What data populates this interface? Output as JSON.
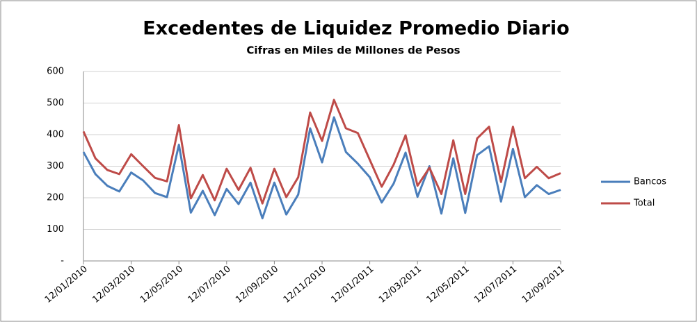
{
  "chart_data": {
    "type": "line",
    "title": "Excedentes de Liquidez Promedio Diario",
    "subtitle": "Cifras en Miles de Millones de Pesos",
    "categories": [
      "12/01/2010",
      null,
      null,
      null,
      "12/03/2010",
      null,
      null,
      null,
      "12/05/2010",
      null,
      null,
      null,
      "12/07/2010",
      null,
      null,
      null,
      "12/09/2010",
      null,
      null,
      null,
      "12/11/2010",
      null,
      null,
      null,
      "12/01/2011",
      null,
      null,
      null,
      "12/03/2011",
      null,
      null,
      null,
      "12/05/2011",
      null,
      null,
      null,
      "12/07/2011",
      null,
      null,
      null,
      "12/09/2011"
    ],
    "series": [
      {
        "name": "Bancos",
        "color": "#4a7ebb",
        "values": [
          345,
          275,
          238,
          220,
          280,
          255,
          215,
          202,
          368,
          153,
          222,
          145,
          228,
          180,
          248,
          135,
          248,
          147,
          210,
          420,
          312,
          455,
          345,
          308,
          265,
          185,
          245,
          343,
          203,
          300,
          150,
          325,
          152,
          335,
          363,
          188,
          355,
          202,
          240,
          212,
          225
        ]
      },
      {
        "name": "Total",
        "color": "#be4b48",
        "values": [
          410,
          325,
          288,
          275,
          338,
          300,
          263,
          252,
          430,
          198,
          272,
          192,
          292,
          225,
          295,
          182,
          292,
          202,
          265,
          470,
          380,
          510,
          420,
          405,
          320,
          235,
          305,
          398,
          238,
          295,
          212,
          382,
          212,
          388,
          425,
          250,
          425,
          262,
          298,
          262,
          278
        ]
      }
    ],
    "ylim": [
      0,
      600
    ],
    "yticks": [
      {
        "value": 0,
        "label": "-"
      },
      100,
      200,
      300,
      400,
      500,
      600
    ],
    "grid": true,
    "legend": "right"
  }
}
